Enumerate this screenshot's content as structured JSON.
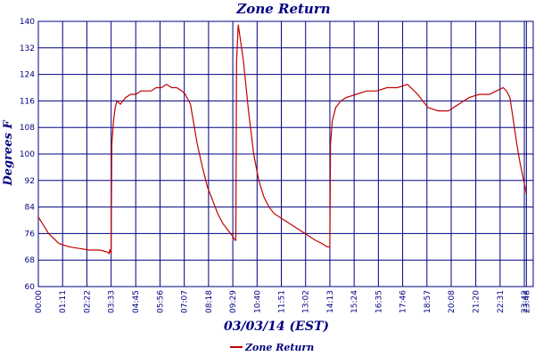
{
  "chart_data": {
    "type": "line",
    "title": "Zone Return",
    "xlabel": "03/03/14 (EST)",
    "ylabel": "Degrees F",
    "ylim": [
      60,
      140
    ],
    "y_ticks": [
      60,
      68,
      76,
      84,
      92,
      100,
      108,
      116,
      124,
      132,
      140
    ],
    "x_range_minutes": [
      0,
      1448
    ],
    "x_ticks": [
      "00:00",
      "01:11",
      "02:22",
      "03:33",
      "04:45",
      "05:56",
      "07:07",
      "08:18",
      "09:29",
      "10:40",
      "11:51",
      "13:02",
      "14:13",
      "15:24",
      "16:35",
      "17:46",
      "18:57",
      "20:08",
      "21:20",
      "22:31",
      "23:42",
      "23:48"
    ],
    "grid": true,
    "legend_position": "bottom-center",
    "colors": {
      "series": "#c00000",
      "grid": "#000080",
      "text": "#000080"
    },
    "series": [
      {
        "name": "Zone Return",
        "x": [
          "00:00",
          "00:30",
          "01:00",
          "01:30",
          "02:00",
          "02:30",
          "03:00",
          "03:20",
          "03:27",
          "03:29",
          "03:33",
          "03:35",
          "03:40",
          "03:45",
          "03:50",
          "04:00",
          "04:15",
          "04:30",
          "04:45",
          "05:00",
          "05:15",
          "05:30",
          "05:45",
          "06:00",
          "06:15",
          "06:30",
          "06:45",
          "07:00",
          "07:10",
          "07:20",
          "07:25",
          "07:30",
          "07:45",
          "08:00",
          "08:15",
          "08:30",
          "08:45",
          "09:00",
          "09:15",
          "09:30",
          "09:35",
          "09:38",
          "09:40",
          "09:45",
          "10:00",
          "10:15",
          "10:30",
          "10:45",
          "11:00",
          "11:15",
          "11:30",
          "12:00",
          "12:30",
          "13:00",
          "13:30",
          "13:50",
          "14:05",
          "14:10",
          "14:13",
          "14:15",
          "14:20",
          "14:30",
          "14:45",
          "15:00",
          "15:30",
          "16:00",
          "16:30",
          "17:00",
          "17:30",
          "18:00",
          "18:30",
          "19:00",
          "19:30",
          "20:00",
          "20:30",
          "21:00",
          "21:30",
          "22:00",
          "22:20",
          "22:40",
          "22:50",
          "23:00",
          "23:10",
          "23:20",
          "23:30",
          "23:40",
          "23:48"
        ],
        "values": [
          81,
          76,
          73,
          72,
          71.5,
          71,
          71,
          70.5,
          70,
          71,
          70,
          103,
          110,
          114,
          116,
          115,
          117,
          118,
          118,
          119,
          119,
          119,
          120,
          120,
          121,
          120,
          120,
          119,
          118,
          116,
          115,
          112,
          103,
          96,
          90,
          86,
          82,
          79,
          77,
          75,
          74,
          74,
          128,
          139,
          128,
          113,
          100,
          92,
          87,
          84,
          82,
          80,
          78,
          76,
          74,
          73,
          72,
          72,
          72,
          103,
          110,
          114,
          116,
          117,
          118,
          119,
          119,
          120,
          120,
          121,
          118,
          114,
          113,
          113,
          115,
          117,
          118,
          118,
          119,
          120,
          119,
          117,
          110,
          103,
          97,
          92,
          88
        ]
      }
    ]
  }
}
